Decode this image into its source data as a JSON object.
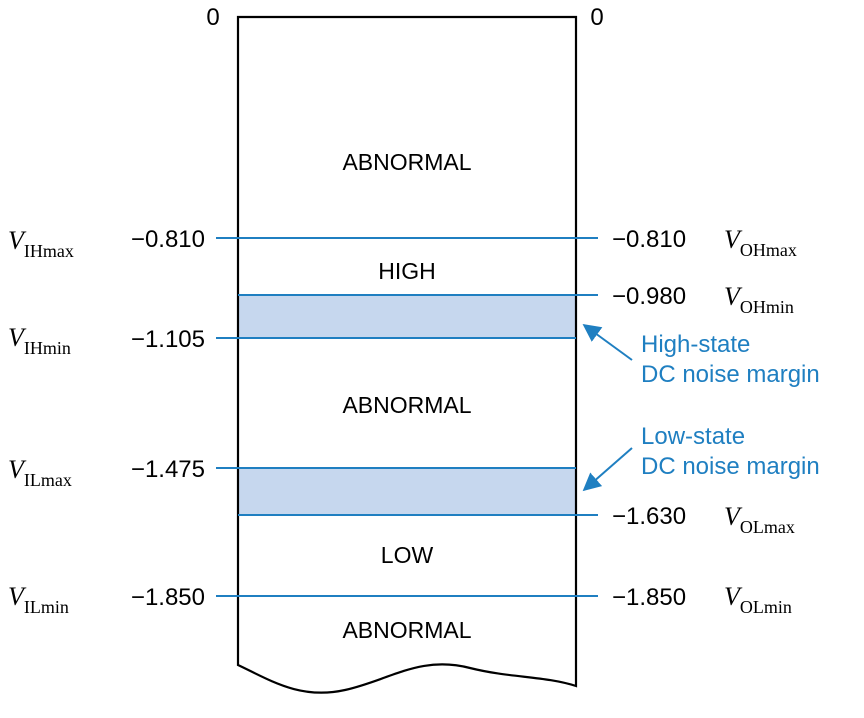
{
  "colors": {
    "level_line": "#1f7fc1",
    "noise_band": "#c6d7ee",
    "outline": "#000000",
    "label_text": "#000000",
    "annotation_text": "#1f7fc1"
  },
  "top_labels": {
    "left": "0",
    "right": "0"
  },
  "regions": {
    "abnormal_top": "ABNORMAL",
    "high": "HIGH",
    "abnormal_middle": "ABNORMAL",
    "low": "LOW",
    "abnormal_bottom": "ABNORMAL"
  },
  "input_levels": [
    {
      "symbol": "V",
      "subscript": "IHmax",
      "value": "−0.810"
    },
    {
      "symbol": "V",
      "subscript": "IHmin",
      "value": "−1.105"
    },
    {
      "symbol": "V",
      "subscript": "ILmax",
      "value": "−1.475"
    },
    {
      "symbol": "V",
      "subscript": "ILmin",
      "value": "−1.850"
    }
  ],
  "output_levels": [
    {
      "symbol": "V",
      "subscript": "OHmax",
      "value": "−0.810"
    },
    {
      "symbol": "V",
      "subscript": "OHmin",
      "value": "−0.980"
    },
    {
      "symbol": "V",
      "subscript": "OLmax",
      "value": "−1.630"
    },
    {
      "symbol": "V",
      "subscript": "OLmin",
      "value": "−1.850"
    }
  ],
  "annotations": {
    "high_margin": {
      "line1": "High-state",
      "line2": "DC noise margin"
    },
    "low_margin": {
      "line1": "Low-state",
      "line2": "DC noise margin"
    }
  }
}
